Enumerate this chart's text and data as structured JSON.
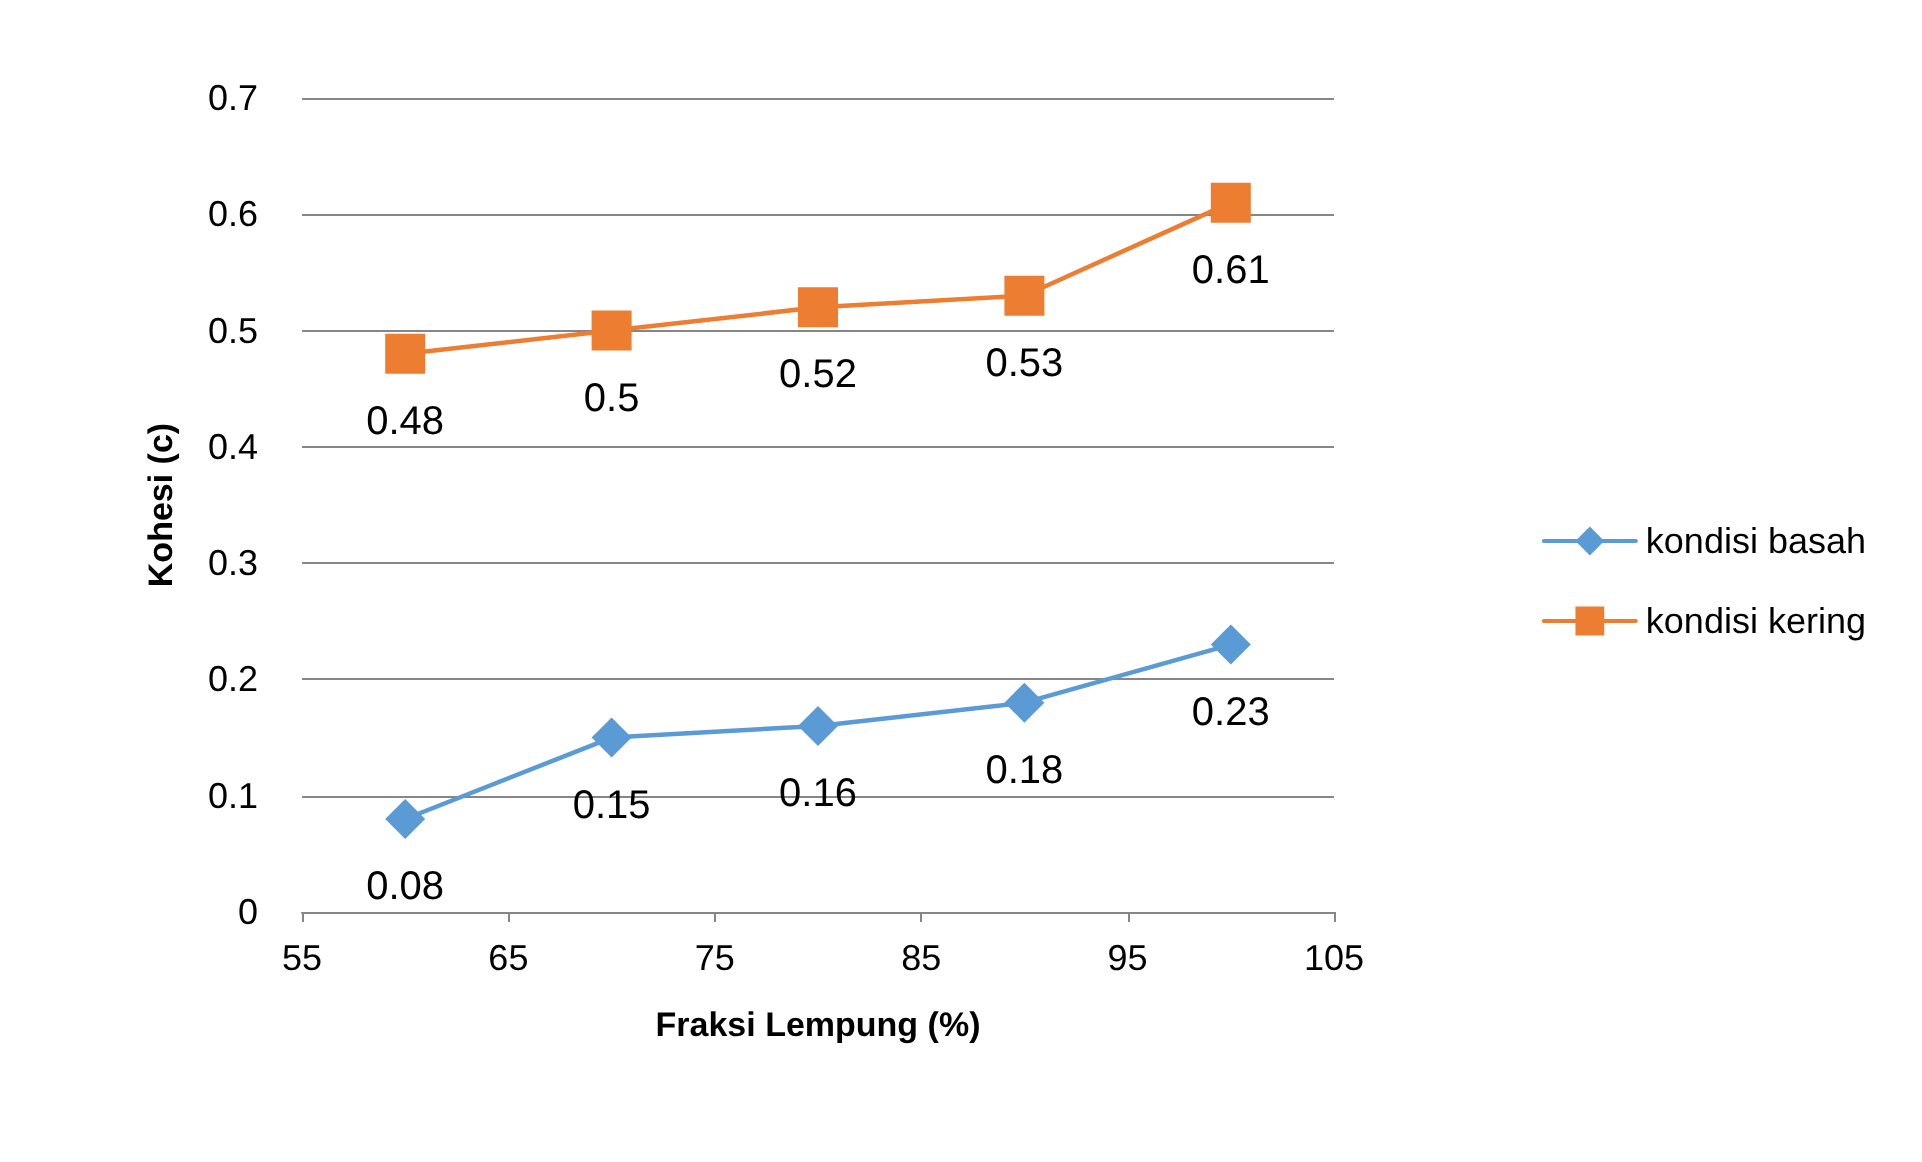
{
  "chart_data": {
    "type": "line",
    "xlabel": "Fraksi Lempung (%)",
    "ylabel": "Kohesi (c)",
    "x": [
      60,
      70,
      80,
      90,
      100
    ],
    "series": [
      {
        "name": "kondisi basah",
        "color": "#5b9bd5",
        "marker": "diamond",
        "values": [
          0.08,
          0.15,
          0.16,
          0.18,
          0.23
        ]
      },
      {
        "name": "kondisi kering",
        "color": "#ed7d31",
        "marker": "square",
        "values": [
          0.48,
          0.5,
          0.52,
          0.53,
          0.61
        ]
      }
    ],
    "xlim": [
      55,
      105
    ],
    "xticks": [
      55,
      65,
      75,
      85,
      95,
      105
    ],
    "ylim": [
      0,
      0.7
    ],
    "yticks": [
      0,
      0.1,
      0.2,
      0.3,
      0.4,
      0.5,
      0.6,
      0.7
    ],
    "grid": "y",
    "legend": "right",
    "data_labels": true
  }
}
